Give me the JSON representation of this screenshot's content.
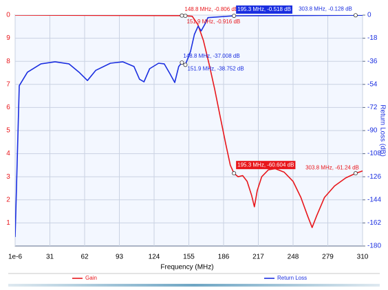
{
  "chart_data": {
    "type": "line",
    "x_label": "Frequency (MHz)",
    "y2_label": "Return Loss (dB)",
    "xlim": [
      1e-06,
      310
    ],
    "xticks": [
      {
        "value": 1e-06,
        "label": "1e-6"
      },
      31,
      62,
      93,
      124,
      155,
      186,
      217,
      248,
      279,
      310
    ],
    "ylim": [
      0,
      10
    ],
    "yticks": [
      1,
      2,
      3,
      4,
      5,
      6,
      7,
      8,
      9,
      {
        "value": 10,
        "label": "0"
      }
    ],
    "y2lim": [
      -180,
      0
    ],
    "y2ticks": [
      0,
      -18,
      -36,
      -54,
      -72,
      -90,
      -108,
      -126,
      -144,
      -162,
      -180
    ],
    "grid": true,
    "series": [
      {
        "name": "Gain",
        "color": "#e8161b",
        "axis": "y",
        "x": [
          1e-06,
          150,
          158,
          163,
          168,
          173,
          178,
          183,
          188,
          192,
          195.3,
          199,
          203,
          207,
          211,
          213.5,
          216,
          220,
          226,
          232,
          240,
          248,
          255,
          261,
          265,
          269,
          276,
          285,
          295,
          303.8,
          310
        ],
        "values": [
          10,
          9.98,
          9.95,
          9.6,
          8.9,
          7.9,
          6.8,
          5.6,
          4.4,
          3.5,
          3.15,
          3.0,
          3.05,
          2.8,
          2.2,
          1.7,
          2.4,
          3.0,
          3.3,
          3.35,
          3.2,
          2.8,
          2.1,
          1.3,
          0.8,
          1.3,
          2.1,
          2.6,
          2.95,
          3.15,
          3.25
        ]
      },
      {
        "name": "Return Loss",
        "color": "#1a2ee0",
        "axis": "y2",
        "x": [
          1e-06,
          3.7,
          11,
          23,
          35.6,
          48,
          57,
          64.5,
          72,
          85,
          96,
          106,
          111,
          115,
          120,
          128,
          133,
          138,
          142.4,
          146,
          148.8,
          151.9,
          156.5,
          160,
          163.3,
          166,
          170,
          172,
          195.3,
          303.8,
          310
        ],
        "values": [
          -173,
          -55,
          -44.5,
          -38,
          -36.4,
          -38,
          -44.5,
          -51,
          -43,
          -37.5,
          -36.4,
          -40,
          -50,
          -52,
          -41.8,
          -37.5,
          -38,
          -45.5,
          -52.5,
          -40,
          -37.008,
          -38.752,
          -28.4,
          -15,
          -8.6,
          -12.3,
          -6,
          -2,
          -0.518,
          -0.128,
          -0.12
        ]
      }
    ],
    "annotations": [
      {
        "series": 0,
        "x": 148.8,
        "y": 9.98,
        "text": "148.8 MHz, -0.806 dB",
        "boxed": false
      },
      {
        "series": 0,
        "x": 151.9,
        "y": 9.97,
        "text": "151.9 MHz, -0.916 dB",
        "boxed": false
      },
      {
        "series": 0,
        "x": 195.3,
        "y": 3.15,
        "text": "195.3 MHz, -60.604 dB",
        "boxed": true
      },
      {
        "series": 0,
        "x": 303.8,
        "y": 3.15,
        "text": "303.8 MHz, -61.24 dB",
        "boxed": false
      },
      {
        "series": 1,
        "x": 148.8,
        "y": -37.008,
        "text": "148.8 MHz, -37.008 dB",
        "boxed": false
      },
      {
        "series": 1,
        "x": 151.9,
        "y": -38.752,
        "text": "151.9 MHz, -38.752 dB",
        "boxed": false
      },
      {
        "series": 1,
        "x": 195.3,
        "y": -0.518,
        "text": "195.3 MHz, -0.518 dB",
        "boxed": true
      },
      {
        "series": 1,
        "x": 303.8,
        "y": -0.128,
        "text": "303.8 MHz, -0.128 dB",
        "boxed": false
      }
    ]
  }
}
